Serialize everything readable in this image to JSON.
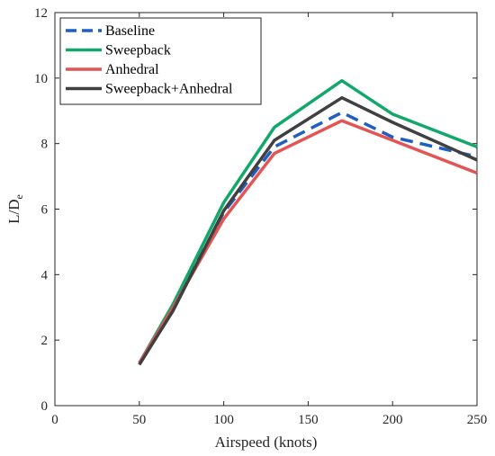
{
  "chart_data": {
    "type": "line",
    "xlabel": "Airspeed (knots)",
    "ylabel_main": "L/D",
    "ylabel_sub": "e",
    "xlim": [
      0,
      250
    ],
    "ylim": [
      0,
      12
    ],
    "xticks": [
      0,
      50,
      100,
      150,
      200,
      250
    ],
    "yticks": [
      0,
      2,
      4,
      6,
      8,
      10,
      12
    ],
    "grid": false,
    "legend_position": "top-left",
    "x": [
      50,
      70,
      100,
      130,
      170,
      200,
      250
    ],
    "series": [
      {
        "name": "Baseline",
        "color": "#1f5fbf",
        "dash": "dashed",
        "values": [
          1.3,
          3.0,
          5.9,
          7.9,
          8.95,
          8.2,
          7.6
        ]
      },
      {
        "name": "Sweepback",
        "color": "#12a86b",
        "dash": "solid",
        "values": [
          1.3,
          3.1,
          6.2,
          8.5,
          9.92,
          8.9,
          7.9
        ]
      },
      {
        "name": "Anhedral",
        "color": "#e35454",
        "dash": "solid",
        "values": [
          1.3,
          3.0,
          5.7,
          7.7,
          8.7,
          8.1,
          7.1
        ]
      },
      {
        "name": "Sweepback+Anhedral",
        "color": "#404040",
        "dash": "solid",
        "values": [
          1.25,
          2.9,
          5.95,
          8.1,
          9.4,
          8.65,
          7.5
        ]
      }
    ]
  }
}
